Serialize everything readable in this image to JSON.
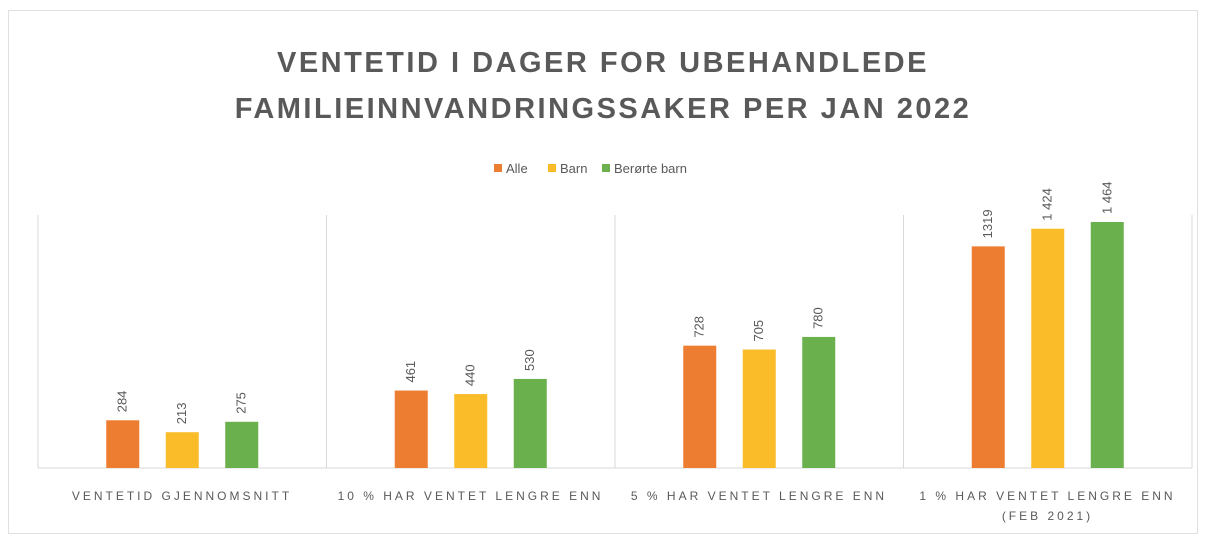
{
  "chart_data": {
    "type": "bar",
    "title": "VENTETID I DAGER FOR UBEHANDLEDE FAMILIEINNVANDRINGSSAKER PER JAN 2022",
    "categories": [
      "VENTETID GJENNOMSNITT",
      "10 % HAR VENTET LENGRE ENN",
      "5 % HAR VENTET LENGRE ENN",
      "1 % HAR VENTET LENGRE ENN (FEB 2021)"
    ],
    "series": [
      {
        "name": "Alle",
        "color": "#ed7d31",
        "values": [
          284,
          461,
          728,
          1319
        ]
      },
      {
        "name": "Barn",
        "color": "#fbbc2a",
        "values": [
          213,
          440,
          705,
          1424
        ],
        "value_labels": [
          "213",
          "440",
          "705",
          "1 424"
        ]
      },
      {
        "name": "Berørte barn",
        "color": "#6ab04c",
        "values": [
          275,
          530,
          780,
          1464
        ],
        "value_labels": [
          "275",
          "530",
          "780",
          "1 464"
        ]
      }
    ],
    "legend": "top"
  }
}
